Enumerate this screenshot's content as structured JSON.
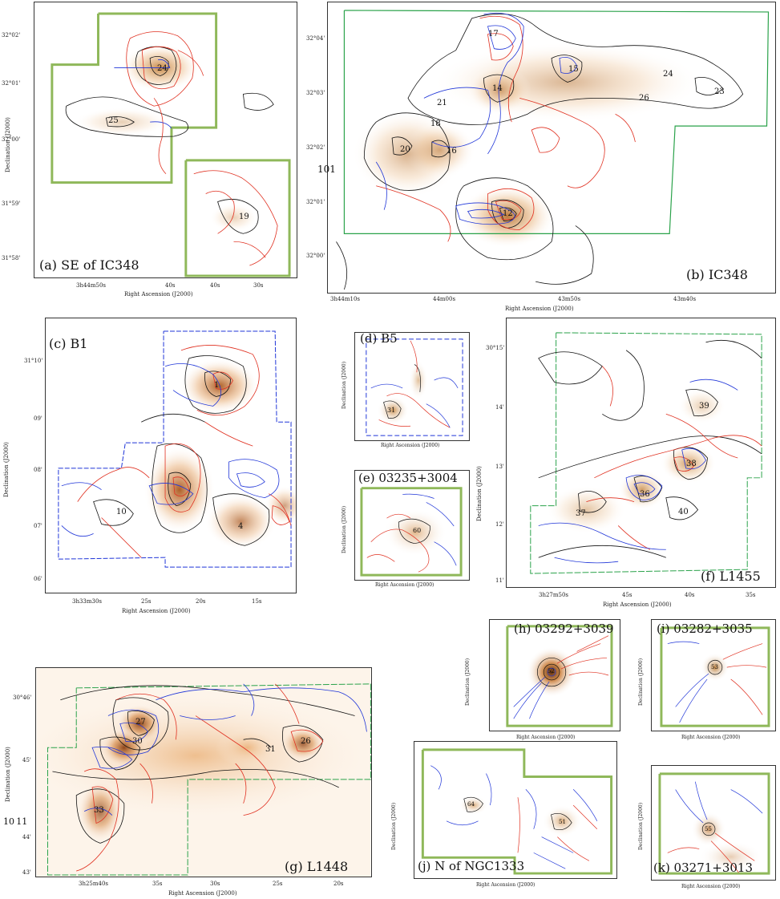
{
  "figure": {
    "stray_label": "101",
    "stray_label_2": "10 11"
  },
  "panels": [
    {
      "id": "a",
      "caption": "(a) SE of IC348",
      "xlabel": "Right Ascension (J2000)",
      "ylabel": "Declination (J2000)",
      "xticks": [
        "3h44m50s",
        "40s",
        "40s",
        "30s"
      ],
      "yticks": [
        "32°02'",
        "32°01'",
        "32°00'",
        "31°59'",
        "31°58'"
      ],
      "sources": [
        "24",
        "25",
        "19"
      ]
    },
    {
      "id": "b",
      "caption": "(b) IC348",
      "xlabel": "Right Ascension (J2000)",
      "ylabel": "",
      "xticks": [
        "3h44m10s",
        "44m00s",
        "43m50s",
        "43m40s"
      ],
      "yticks": [
        "32°04'",
        "32°03'",
        "32°02'",
        "32°01'",
        "32°00'"
      ],
      "sources": [
        "17",
        "15",
        "14",
        "24",
        "23",
        "26",
        "21",
        "18",
        "16",
        "20",
        "12"
      ]
    },
    {
      "id": "c",
      "caption": "(c) B1",
      "xlabel": "Right Ascension (J2000)",
      "ylabel": "Declination (J2000)",
      "xticks": [
        "3h33m30s",
        "25s",
        "20s",
        "15s"
      ],
      "yticks": [
        "31°10'",
        "09'",
        "08'",
        "07'",
        "06'"
      ],
      "sources": [
        "1",
        "10",
        "4"
      ]
    },
    {
      "id": "d",
      "caption": "(d) B5",
      "xlabel": "Right Ascension (J2000)",
      "ylabel": "Declination (J2000)",
      "xticks": [],
      "yticks": [],
      "sources": [
        "31"
      ]
    },
    {
      "id": "e",
      "caption": "(e) 03235+3004",
      "xlabel": "Right Ascension (J2000)",
      "ylabel": "Declination (J2000)",
      "xticks": [],
      "yticks": [],
      "sources": [
        "60"
      ]
    },
    {
      "id": "f",
      "caption": "(f) L1455",
      "xlabel": "Right Ascension (J2000)",
      "ylabel": "Declination (J2000)",
      "xticks": [
        "3h27m50s",
        "45s",
        "40s",
        "35s"
      ],
      "yticks": [
        "30°15'",
        "14'",
        "13'",
        "12'",
        "11'"
      ],
      "sources": [
        "39",
        "38",
        "36",
        "37",
        "40"
      ]
    },
    {
      "id": "g",
      "caption": "(g) L1448",
      "xlabel": "Right Ascension (J2000)",
      "ylabel": "Declination (J2000)",
      "xticks": [
        "3h25m40s",
        "35s",
        "30s",
        "25s",
        "20s"
      ],
      "yticks": [
        "30°46'",
        "45'",
        "44'",
        "43'"
      ],
      "sources": [
        "27",
        "30",
        "31",
        "33",
        "26"
      ]
    },
    {
      "id": "h",
      "caption": "(h) 03292+3039",
      "xlabel": "Right Ascension (J2000)",
      "ylabel": "Declination (J2000)",
      "xticks": [],
      "yticks": [],
      "sources": [
        "52"
      ]
    },
    {
      "id": "i",
      "caption": "(i) 03282+3035",
      "xlabel": "Right Ascension (J2000)",
      "ylabel": "Declination (J2000)",
      "xticks": [],
      "yticks": [],
      "sources": [
        "53"
      ]
    },
    {
      "id": "j",
      "caption": "(j) N of NGC1333",
      "xlabel": "Right Ascension (J2000)",
      "ylabel": "Declination (J2000)",
      "xticks": [],
      "yticks": [],
      "sources": [
        "64",
        "51"
      ]
    },
    {
      "id": "k",
      "caption": "(k) 03271+3013",
      "xlabel": "Right Ascension (J2000)",
      "ylabel": "Declination (J2000)",
      "xticks": [],
      "yticks": [],
      "sources": [
        "55"
      ]
    }
  ],
  "colors": {
    "redshifted": "#e03020",
    "blueshifted": "#1f35d8",
    "contour": "#111111",
    "coverage_thick": "#8fb85a",
    "coverage_thin": "#2aa24a",
    "emission_peak": "#b8762e",
    "emission_faint": "#f6e3cf"
  }
}
